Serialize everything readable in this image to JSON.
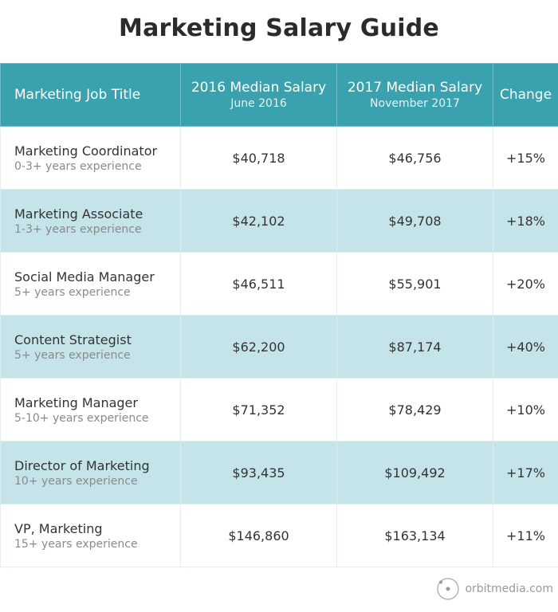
{
  "title": "Marketing Salary Guide",
  "chart_data": {
    "type": "table",
    "title": "Marketing Salary Guide",
    "columns": [
      {
        "label": "Marketing Job Title",
        "sub": ""
      },
      {
        "label": "2016 Median Salary",
        "sub": "June 2016"
      },
      {
        "label": "2017 Median Salary",
        "sub": "November 2017"
      },
      {
        "label": "Change",
        "sub": ""
      }
    ],
    "rows": [
      {
        "job": "Marketing Coordinator",
        "experience": "0-3+ years experience",
        "salary_2016": "$40,718",
        "salary_2017": "$46,756",
        "change": "+15%"
      },
      {
        "job": "Marketing Associate",
        "experience": "1-3+ years experience",
        "salary_2016": "$42,102",
        "salary_2017": "$49,708",
        "change": "+18%"
      },
      {
        "job": "Social Media Manager",
        "experience": "5+ years experience",
        "salary_2016": "$46,511",
        "salary_2017": "$55,901",
        "change": "+20%"
      },
      {
        "job": "Content Strategist",
        "experience": "5+ years experience",
        "salary_2016": "$62,200",
        "salary_2017": "$87,174",
        "change": "+40%"
      },
      {
        "job": "Marketing Manager",
        "experience": "5-10+ years experience",
        "salary_2016": "$71,352",
        "salary_2017": "$78,429",
        "change": "+10%"
      },
      {
        "job": "Director of Marketing",
        "experience": "10+ years experience",
        "salary_2016": "$93,435",
        "salary_2017": "$109,492",
        "change": "+17%"
      },
      {
        "job": "VP, Marketing",
        "experience": "15+ years experience",
        "salary_2016": "$146,860",
        "salary_2017": "$163,134",
        "change": "+11%"
      }
    ]
  },
  "colors": {
    "header": "#3aa1ae",
    "alt_row": "#c5e4e9"
  },
  "logo": {
    "text": "orbitmedia.com",
    "icon": "orbit-icon"
  }
}
